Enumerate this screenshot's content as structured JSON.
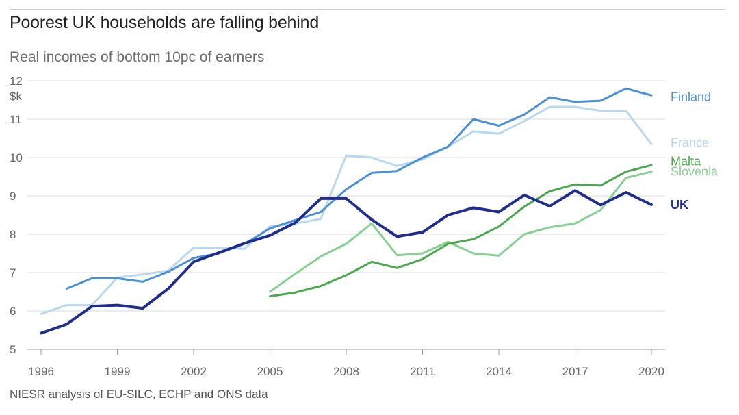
{
  "header": {
    "title": "Poorest UK households are falling behind",
    "subtitle": "Real incomes of bottom 10pc of earners"
  },
  "footer": {
    "source": "NIESR analysis of EU-SILC, ECHP and ONS data"
  },
  "chart_data": {
    "type": "line",
    "ylabel_unit": "$k",
    "xlim": [
      1996,
      2020
    ],
    "ylim": [
      5,
      12
    ],
    "x_ticks": [
      "1996",
      "1999",
      "2002",
      "2005",
      "2008",
      "2011",
      "2014",
      "2017",
      "2020"
    ],
    "y_ticks": [
      "5",
      "6",
      "7",
      "8",
      "9",
      "10",
      "11",
      "12"
    ],
    "grid": "horizontal",
    "series": [
      {
        "name": "France",
        "color": "#b8d8f0",
        "bold": false,
        "x": [
          1996,
          1997,
          1998,
          1999,
          2000,
          2001,
          2002,
          2003,
          2004,
          2005,
          2006,
          2007,
          2008,
          2009,
          2010,
          2011,
          2012,
          2013,
          2014,
          2015,
          2016,
          2017,
          2018,
          2019,
          2020
        ],
        "y": [
          5.92,
          6.15,
          6.15,
          6.87,
          6.95,
          7.05,
          7.65,
          7.65,
          7.62,
          8.2,
          8.28,
          8.4,
          10.05,
          10.0,
          9.78,
          9.95,
          10.28,
          10.68,
          10.62,
          10.95,
          11.32,
          11.32,
          11.22,
          11.22,
          10.35
        ]
      },
      {
        "name": "Finland",
        "color": "#4a90d9",
        "bold": false,
        "x": [
          1997,
          1998,
          1999,
          2000,
          2001,
          2002,
          2003,
          2004,
          2005,
          2006,
          2007,
          2008,
          2009,
          2010,
          2011,
          2012,
          2013,
          2014,
          2015,
          2016,
          2017,
          2018,
          2019,
          2020
        ],
        "y": [
          6.58,
          6.85,
          6.85,
          6.76,
          7.02,
          7.38,
          7.5,
          7.75,
          8.15,
          8.37,
          8.58,
          9.17,
          9.6,
          9.65,
          10.0,
          10.28,
          11.0,
          10.83,
          11.12,
          11.57,
          11.45,
          11.48,
          11.8,
          11.62
        ]
      },
      {
        "name": "Slovenia",
        "color": "#86d192",
        "bold": false,
        "x": [
          2005,
          2006,
          2007,
          2008,
          2009,
          2010,
          2011,
          2012,
          2013,
          2014,
          2015,
          2016,
          2017,
          2018,
          2019,
          2020
        ],
        "y": [
          6.5,
          6.97,
          7.42,
          7.75,
          8.28,
          7.45,
          7.5,
          7.8,
          7.5,
          7.44,
          8.0,
          8.18,
          8.28,
          8.63,
          9.47,
          9.63
        ]
      },
      {
        "name": "Malta",
        "color": "#4aa84c",
        "bold": false,
        "x": [
          2005,
          2006,
          2007,
          2008,
          2009,
          2010,
          2011,
          2012,
          2013,
          2014,
          2015,
          2016,
          2017,
          2018,
          2019,
          2020
        ],
        "y": [
          6.38,
          6.48,
          6.65,
          6.93,
          7.28,
          7.12,
          7.35,
          7.75,
          7.87,
          8.2,
          8.72,
          9.12,
          9.3,
          9.27,
          9.63,
          9.8
        ]
      },
      {
        "name": "UK",
        "color": "#1f2d8f",
        "bold": true,
        "x": [
          1996,
          1997,
          1998,
          1999,
          2000,
          2001,
          2002,
          2003,
          2004,
          2005,
          2006,
          2007,
          2008,
          2009,
          2010,
          2011,
          2012,
          2013,
          2014,
          2015,
          2016,
          2017,
          2018,
          2019,
          2020
        ],
        "y": [
          5.42,
          5.65,
          6.12,
          6.15,
          6.07,
          6.58,
          7.28,
          7.52,
          7.76,
          7.97,
          8.3,
          8.93,
          8.93,
          8.38,
          7.94,
          8.05,
          8.5,
          8.69,
          8.58,
          9.02,
          8.73,
          9.14,
          8.76,
          9.09,
          8.77
        ]
      }
    ],
    "labels": [
      {
        "series": "Finland",
        "text": "Finland",
        "y": 11.58
      },
      {
        "series": "France",
        "text": "France",
        "y": 10.38
      },
      {
        "series": "Malta",
        "text": "Malta",
        "y": 9.9
      },
      {
        "series": "Slovenia",
        "text": "Slovenia",
        "y": 9.63
      },
      {
        "series": "UK",
        "text": "UK",
        "y": 8.77
      }
    ]
  }
}
